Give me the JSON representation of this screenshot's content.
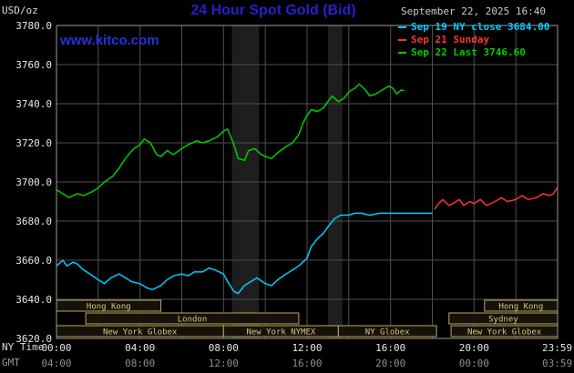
{
  "header": {
    "units_label": "USD/oz",
    "title": "24 Hour Spot Gold (Bid)",
    "datetime": "September 22, 2025 16:40",
    "watermark": "www.kitco.com"
  },
  "legend": {
    "items": [
      {
        "label": "Sep 19 NY close 3684.00",
        "color": "#00ccff"
      },
      {
        "label": "Sep 21 Sunday",
        "color": "#ff3333"
      },
      {
        "label": "Sep 22 Last 3746.60",
        "color": "#00cc00"
      }
    ]
  },
  "axes": {
    "tz_labels": [
      "NY Time",
      "GMT"
    ]
  },
  "colors": {
    "background": "#000000",
    "title_blue": "#2222cc",
    "link_blue": "#2233dd",
    "grid": "#4f4f4f",
    "frame": "#9a9a9a",
    "band": "#1e1e1e",
    "session_border": "#b9a95e",
    "session_text": "#d8c87c",
    "session_fill": "#16120a",
    "tick_ny": "#e8e8e8",
    "tick_gmt": "#909090"
  },
  "chart_data": {
    "type": "line",
    "title": "24 Hour Spot Gold (Bid)",
    "ylabel": "USD/oz",
    "ylim": [
      3620,
      3780
    ],
    "y_ticks": [
      3620,
      3640,
      3660,
      3680,
      3700,
      3720,
      3740,
      3760,
      3780
    ],
    "x_hours_range": [
      0,
      24
    ],
    "x_ticks": [
      {
        "hour": 0,
        "ny": "00:00",
        "gmt": "04:00"
      },
      {
        "hour": 4,
        "ny": "04:00",
        "gmt": "08:00"
      },
      {
        "hour": 8,
        "ny": "08:00",
        "gmt": "12:00"
      },
      {
        "hour": 12,
        "ny": "12:00",
        "gmt": "16:00"
      },
      {
        "hour": 16,
        "ny": "16:00",
        "gmt": "20:00"
      },
      {
        "hour": 20,
        "ny": "20:00",
        "gmt": "00:00"
      },
      {
        "hour": 23.983,
        "ny": "23:59",
        "gmt": "03:59"
      }
    ],
    "grid": {
      "horizontal_step": 20,
      "vertical_step_hours": 2
    },
    "legend_position": "top-right",
    "shaded_bands": [
      [
        8.4,
        9.7
      ],
      [
        13.0,
        13.7
      ]
    ],
    "series": [
      {
        "name": "Sep 19 NY close",
        "color": "#00ccff",
        "points": [
          [
            0,
            3657
          ],
          [
            0.3,
            3660
          ],
          [
            0.5,
            3657
          ],
          [
            0.8,
            3659
          ],
          [
            1,
            3658
          ],
          [
            1.3,
            3655
          ],
          [
            1.6,
            3653
          ],
          [
            2,
            3650
          ],
          [
            2.3,
            3648
          ],
          [
            2.6,
            3651
          ],
          [
            3,
            3653
          ],
          [
            3.3,
            3651
          ],
          [
            3.6,
            3649
          ],
          [
            4,
            3648
          ],
          [
            4.3,
            3646
          ],
          [
            4.6,
            3645
          ],
          [
            5,
            3647
          ],
          [
            5.3,
            3650
          ],
          [
            5.6,
            3652
          ],
          [
            6,
            3653
          ],
          [
            6.3,
            3652
          ],
          [
            6.6,
            3654
          ],
          [
            7,
            3654
          ],
          [
            7.3,
            3656
          ],
          [
            7.6,
            3655
          ],
          [
            8,
            3653
          ],
          [
            8.2,
            3649
          ],
          [
            8.5,
            3644
          ],
          [
            8.7,
            3643
          ],
          [
            9,
            3647
          ],
          [
            9.3,
            3649
          ],
          [
            9.6,
            3651
          ],
          [
            10,
            3648
          ],
          [
            10.3,
            3647
          ],
          [
            10.6,
            3650
          ],
          [
            11,
            3653
          ],
          [
            11.3,
            3655
          ],
          [
            11.6,
            3657
          ],
          [
            12,
            3661
          ],
          [
            12.2,
            3667
          ],
          [
            12.5,
            3671
          ],
          [
            12.8,
            3674
          ],
          [
            13,
            3677
          ],
          [
            13.3,
            3681
          ],
          [
            13.6,
            3683
          ],
          [
            14,
            3683
          ],
          [
            14.3,
            3684
          ],
          [
            14.6,
            3684
          ],
          [
            15,
            3683
          ],
          [
            15.5,
            3684
          ],
          [
            16,
            3684
          ],
          [
            16.5,
            3684
          ],
          [
            17,
            3684
          ],
          [
            17.5,
            3684
          ],
          [
            18,
            3684
          ]
        ]
      },
      {
        "name": "Sep 21 Sunday",
        "color": "#ff3333",
        "points": [
          [
            18.1,
            3686
          ],
          [
            18.3,
            3689
          ],
          [
            18.5,
            3691
          ],
          [
            18.8,
            3688
          ],
          [
            19,
            3689
          ],
          [
            19.3,
            3691
          ],
          [
            19.5,
            3688
          ],
          [
            19.8,
            3690
          ],
          [
            20,
            3689
          ],
          [
            20.3,
            3691
          ],
          [
            20.6,
            3688
          ],
          [
            21,
            3690
          ],
          [
            21.3,
            3692
          ],
          [
            21.6,
            3690
          ],
          [
            22,
            3691
          ],
          [
            22.3,
            3693
          ],
          [
            22.6,
            3691
          ],
          [
            23,
            3692
          ],
          [
            23.3,
            3694
          ],
          [
            23.6,
            3693
          ],
          [
            23.8,
            3694
          ],
          [
            23.98,
            3697
          ]
        ]
      },
      {
        "name": "Sep 22 Last",
        "color": "#00cc00",
        "points": [
          [
            0,
            3696
          ],
          [
            0.3,
            3694
          ],
          [
            0.6,
            3692
          ],
          [
            1,
            3694
          ],
          [
            1.3,
            3693
          ],
          [
            1.7,
            3695
          ],
          [
            2,
            3697
          ],
          [
            2.3,
            3700
          ],
          [
            2.7,
            3703
          ],
          [
            3,
            3707
          ],
          [
            3.3,
            3712
          ],
          [
            3.7,
            3717
          ],
          [
            4,
            3719
          ],
          [
            4.2,
            3722
          ],
          [
            4.5,
            3720
          ],
          [
            4.8,
            3714
          ],
          [
            5,
            3713
          ],
          [
            5.3,
            3716
          ],
          [
            5.6,
            3714
          ],
          [
            6,
            3717
          ],
          [
            6.3,
            3719
          ],
          [
            6.7,
            3721
          ],
          [
            7,
            3720
          ],
          [
            7.3,
            3721
          ],
          [
            7.7,
            3723
          ],
          [
            8,
            3726
          ],
          [
            8.2,
            3727
          ],
          [
            8.5,
            3719
          ],
          [
            8.7,
            3712
          ],
          [
            9,
            3711
          ],
          [
            9.2,
            3716
          ],
          [
            9.5,
            3717
          ],
          [
            9.8,
            3714
          ],
          [
            10,
            3713
          ],
          [
            10.3,
            3712
          ],
          [
            10.6,
            3715
          ],
          [
            11,
            3718
          ],
          [
            11.3,
            3720
          ],
          [
            11.6,
            3724
          ],
          [
            11.8,
            3730
          ],
          [
            12,
            3734
          ],
          [
            12.2,
            3737
          ],
          [
            12.5,
            3736
          ],
          [
            12.8,
            3738
          ],
          [
            13,
            3741
          ],
          [
            13.2,
            3744
          ],
          [
            13.5,
            3741
          ],
          [
            13.8,
            3743
          ],
          [
            14,
            3746
          ],
          [
            14.3,
            3748
          ],
          [
            14.5,
            3750
          ],
          [
            14.8,
            3747
          ],
          [
            15,
            3744
          ],
          [
            15.3,
            3745
          ],
          [
            15.6,
            3747
          ],
          [
            15.9,
            3749
          ],
          [
            16.1,
            3748
          ],
          [
            16.3,
            3745
          ],
          [
            16.5,
            3747
          ],
          [
            16.67,
            3746.6
          ]
        ]
      }
    ],
    "sessions": [
      {
        "label": "Hong Kong",
        "row": 0,
        "start": 0,
        "end": 5
      },
      {
        "label": "Hong Kong",
        "row": 0,
        "start": 20.5,
        "end": 24
      },
      {
        "label": "London",
        "row": 1,
        "start": 1.4,
        "end": 11.6
      },
      {
        "label": "Sydney",
        "row": 1,
        "start": 18.8,
        "end": 24
      },
      {
        "label": "New York Globex",
        "row": 2,
        "start": 0,
        "end": 8
      },
      {
        "label": "New York NYMEX",
        "row": 2,
        "start": 8,
        "end": 13.5
      },
      {
        "label": "NY Globex",
        "row": 2,
        "start": 13.5,
        "end": 18.2
      },
      {
        "label": "New York Globex",
        "row": 2,
        "start": 18.9,
        "end": 24
      }
    ]
  }
}
